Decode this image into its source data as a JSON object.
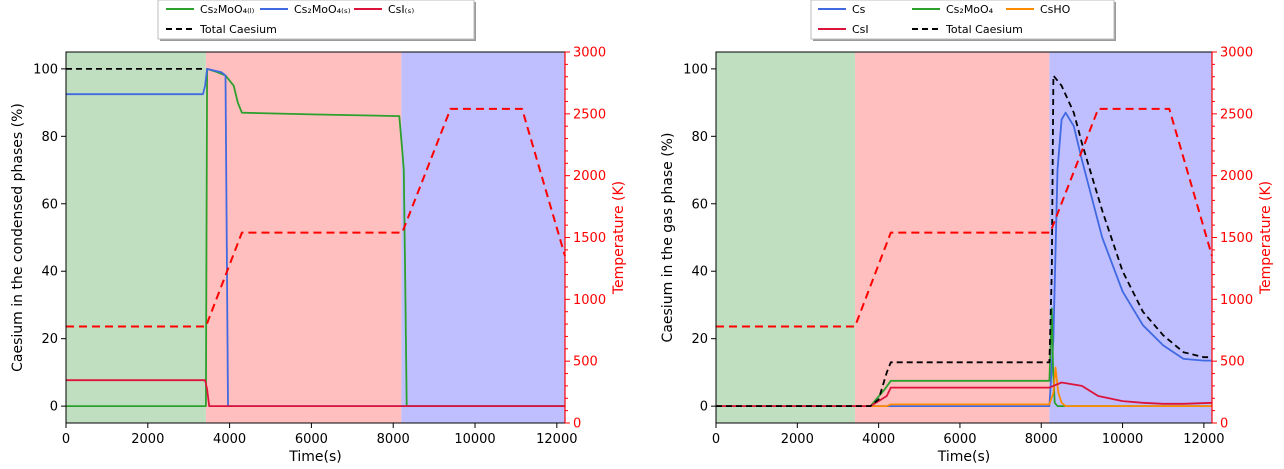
{
  "chart_data": [
    {
      "type": "line",
      "xlabel": "Time(s)",
      "ylabel": "Caesium in the condensed phases (%)",
      "y2label": "Temperature (K)",
      "xlim": [
        0,
        12200
      ],
      "ylim": [
        -5,
        105
      ],
      "y2lim": [
        0,
        3000
      ],
      "x_ticks": [
        0,
        2000,
        4000,
        6000,
        8000,
        10000,
        12000
      ],
      "y_ticks": [
        0,
        20,
        40,
        60,
        80,
        100
      ],
      "y2_ticks": [
        0,
        500,
        1000,
        1500,
        2000,
        2500,
        3000
      ],
      "phases": [
        {
          "x0": 0,
          "x1": 3420,
          "color": "#c0dfc0"
        },
        {
          "x0": 3420,
          "x1": 8200,
          "color": "#ffbfbf"
        },
        {
          "x0": 8200,
          "x1": 12200,
          "color": "#bfbfff"
        }
      ],
      "legend_position": "top-center",
      "series": [
        {
          "name": "Cs₂MoO₄₍ₗ₎",
          "color": "#2ca02c",
          "style": "solid",
          "axis": "left",
          "x": [
            0,
            3420,
            3450,
            3700,
            3900,
            4100,
            4200,
            4300,
            6000,
            8150,
            8220,
            8260,
            8290,
            8330,
            8400,
            12200
          ],
          "y": [
            0,
            0,
            100,
            99,
            98,
            95,
            90,
            87,
            86.5,
            86,
            76,
            70,
            40,
            0,
            0,
            0
          ]
        },
        {
          "name": "Cs₂MoO₄₍ₛ₎",
          "color": "#4169e1",
          "style": "solid",
          "axis": "left",
          "x": [
            0,
            3350,
            3400,
            3450,
            3800,
            3900,
            3960,
            4000,
            12200
          ],
          "y": [
            92.5,
            92.5,
            95,
            100,
            99,
            98,
            0,
            0,
            0
          ]
        },
        {
          "name": "CsI₍ₛ₎",
          "color": "#dc143c",
          "style": "solid",
          "axis": "left",
          "x": [
            0,
            3400,
            3450,
            3500,
            12200
          ],
          "y": [
            7.7,
            7.7,
            5,
            0,
            0
          ]
        },
        {
          "name": "Total Caesium",
          "color": "#000000",
          "style": "dashed",
          "axis": "left",
          "x": [
            0,
            3420
          ],
          "y": [
            100,
            100
          ]
        },
        {
          "name": "",
          "color": "#ff0000",
          "style": "dashed",
          "axis": "right",
          "x": [
            0,
            3420,
            4300,
            8220,
            9400,
            11150,
            12200
          ],
          "y": [
            780,
            780,
            1540,
            1540,
            2540,
            2540,
            1350
          ]
        }
      ]
    },
    {
      "type": "line",
      "xlabel": "Time(s)",
      "ylabel": "Caesium in the gas phase (%)",
      "y2label": "Temperature (K)",
      "xlim": [
        0,
        12200
      ],
      "ylim": [
        -5,
        105
      ],
      "y2lim": [
        0,
        3000
      ],
      "x_ticks": [
        0,
        2000,
        4000,
        6000,
        8000,
        10000,
        12000
      ],
      "y_ticks": [
        0,
        20,
        40,
        60,
        80,
        100
      ],
      "y2_ticks": [
        0,
        500,
        1000,
        1500,
        2000,
        2500,
        3000
      ],
      "phases": [
        {
          "x0": 0,
          "x1": 3420,
          "color": "#c0dfc0"
        },
        {
          "x0": 3420,
          "x1": 8200,
          "color": "#ffbfbf"
        },
        {
          "x0": 8200,
          "x1": 12200,
          "color": "#bfbfff"
        }
      ],
      "legend_position": "top-center",
      "series": [
        {
          "name": "Cs",
          "color": "#4169e1",
          "style": "solid",
          "axis": "left",
          "x": [
            0,
            8200,
            8300,
            8400,
            8500,
            8600,
            8800,
            9000,
            9500,
            10000,
            10500,
            11000,
            11500,
            12000,
            12200
          ],
          "y": [
            0,
            0,
            20,
            70,
            85,
            87,
            83,
            73,
            50,
            34,
            24,
            18,
            14,
            13.5,
            13.5
          ]
        },
        {
          "name": "Cs₂MoO₄",
          "color": "#2ca02c",
          "style": "solid",
          "axis": "left",
          "x": [
            0,
            3800,
            4150,
            4300,
            8200,
            8260,
            8290,
            8330,
            8400,
            12200
          ],
          "y": [
            0,
            0,
            5,
            7.5,
            7.5,
            29,
            12,
            1,
            0,
            0
          ]
        },
        {
          "name": "CsHO",
          "color": "#ff8c00",
          "style": "solid",
          "axis": "left",
          "x": [
            0,
            4200,
            4300,
            8200,
            8300,
            8350,
            8420,
            8500,
            8600,
            12200
          ],
          "y": [
            0,
            0,
            0.5,
            0.5,
            4,
            11.5,
            4,
            1,
            0,
            0
          ]
        },
        {
          "name": "CsI",
          "color": "#dc143c",
          "style": "solid",
          "axis": "left",
          "x": [
            0,
            3800,
            4200,
            4300,
            8200,
            8500,
            9000,
            9400,
            10000,
            10500,
            11000,
            11500,
            12200
          ],
          "y": [
            0,
            0,
            3,
            5.5,
            5.5,
            7,
            6,
            3,
            1.5,
            1,
            0.7,
            0.7,
            1
          ]
        },
        {
          "name": "Total Caesium",
          "color": "#000000",
          "style": "dashed",
          "axis": "left",
          "x": [
            0,
            3800,
            4000,
            4200,
            4300,
            8200,
            8260,
            8300,
            8500,
            8800,
            9000,
            9500,
            10000,
            10500,
            11000,
            11500,
            12000,
            12200
          ],
          "y": [
            0,
            0,
            2,
            10,
            13,
            13,
            40,
            98,
            95,
            87,
            78,
            58,
            40,
            28,
            21,
            16,
            14.5,
            14.5
          ]
        },
        {
          "name": "",
          "color": "#ff0000",
          "style": "dashed",
          "axis": "right",
          "x": [
            0,
            3420,
            4300,
            8220,
            9400,
            11150,
            12200
          ],
          "y": [
            780,
            780,
            1540,
            1540,
            2540,
            2540,
            1350
          ]
        }
      ]
    }
  ]
}
